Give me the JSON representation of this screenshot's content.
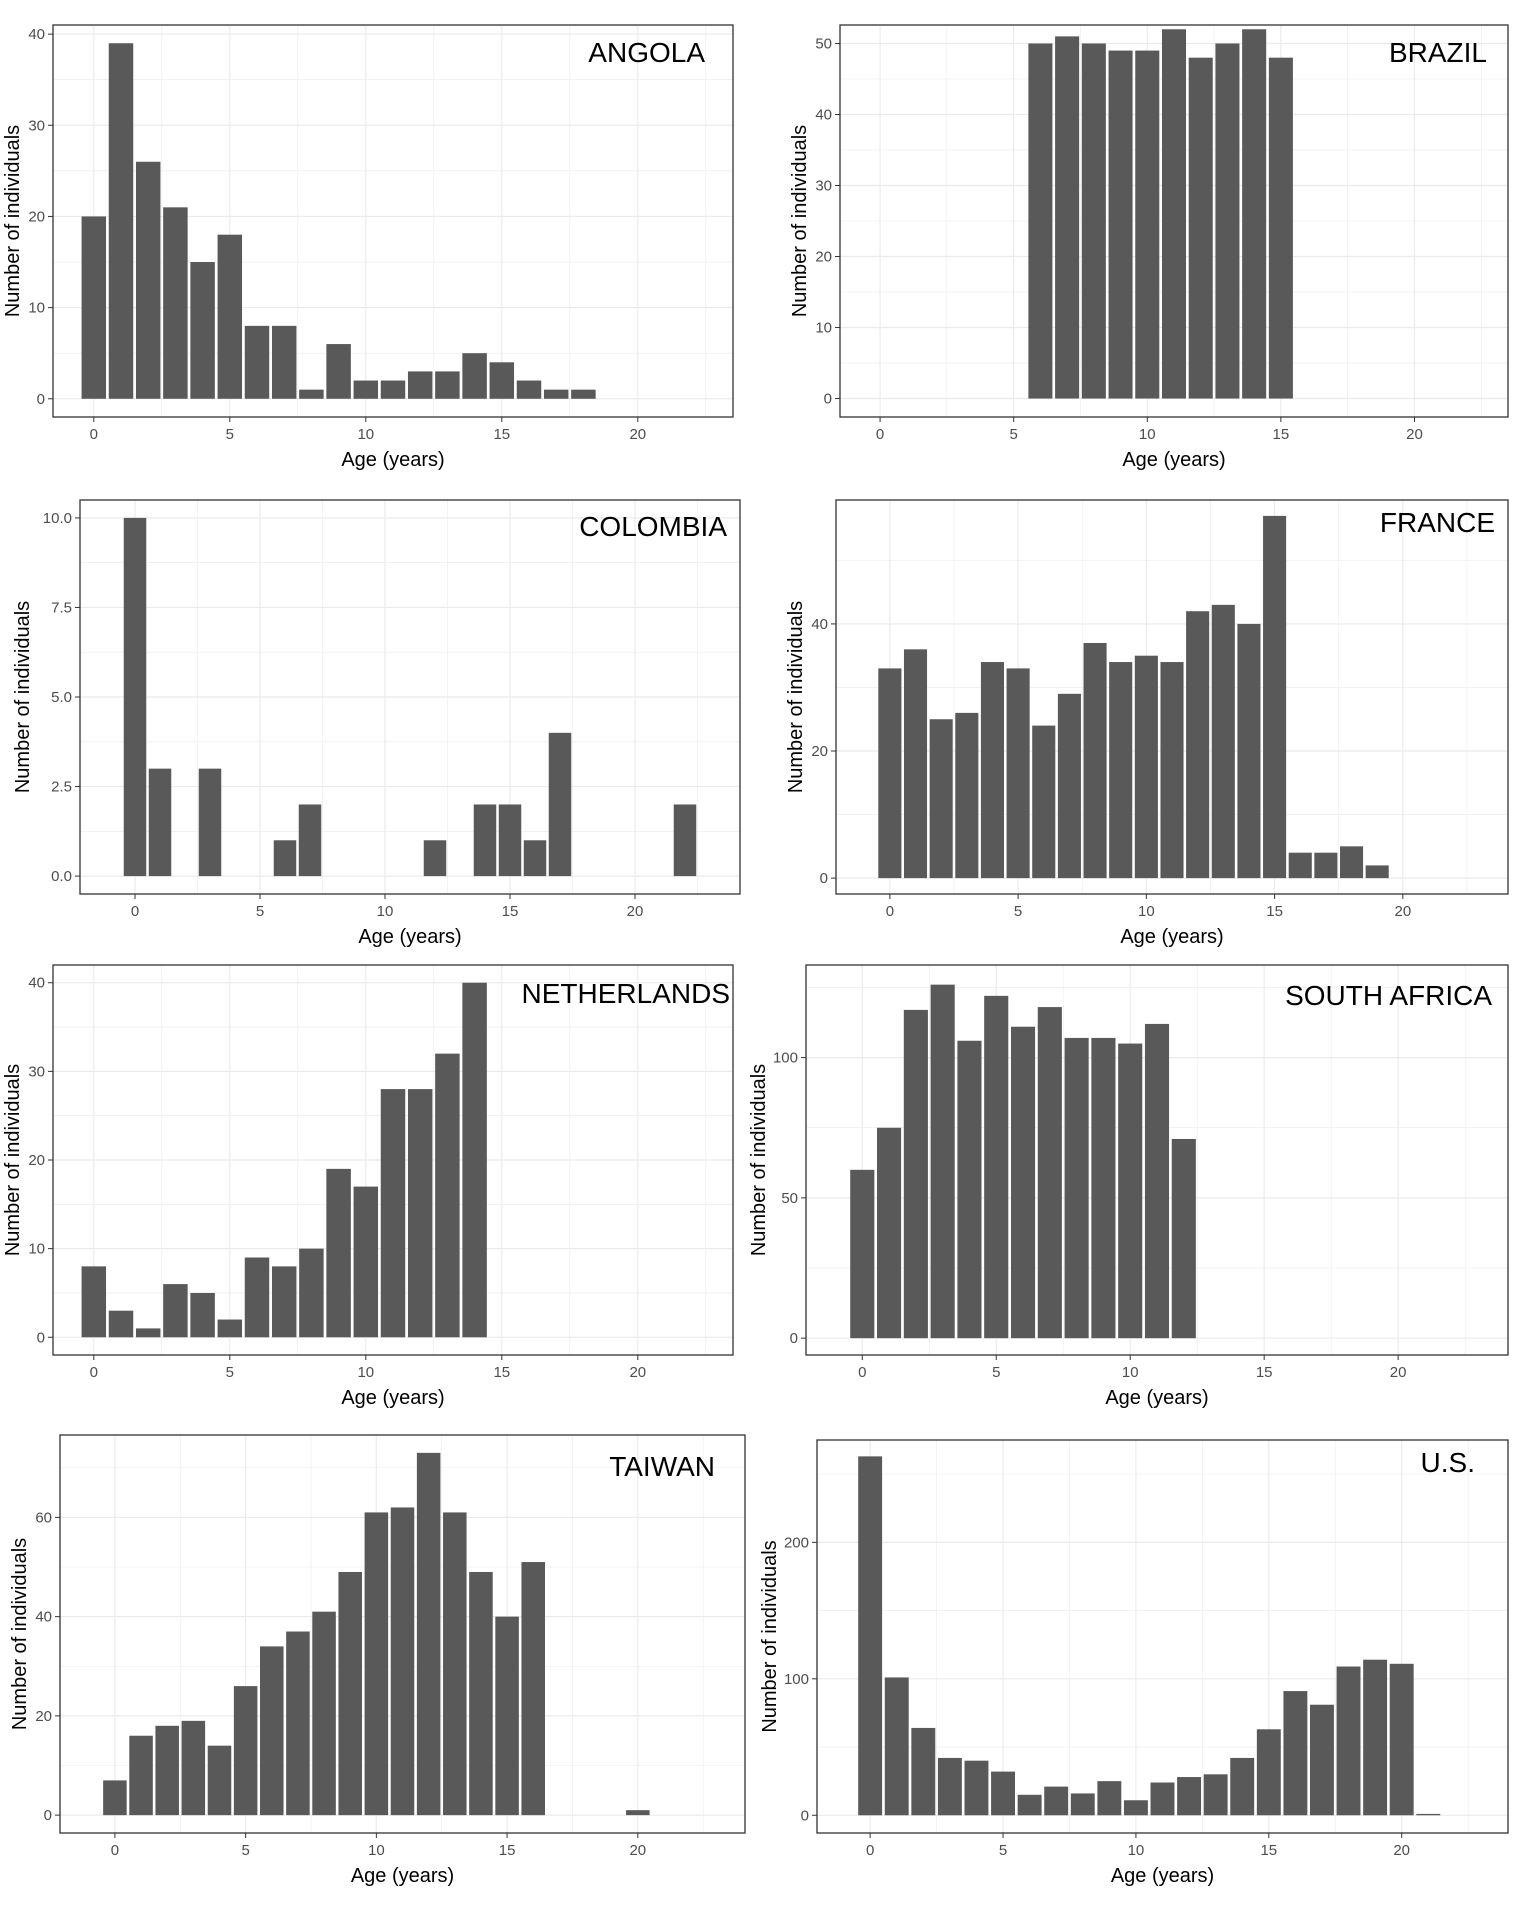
{
  "figure": {
    "bar_color": "#595959",
    "grid_color": "#ebebeb",
    "frame_color": "#333333"
  },
  "chart_data": [
    {
      "id": "angola",
      "title": "ANGOLA",
      "type": "bar",
      "xlabel": "Age (years)",
      "ylabel": "Number of individuals",
      "x": [
        0,
        1,
        2,
        3,
        4,
        5,
        6,
        7,
        8,
        9,
        10,
        11,
        12,
        13,
        14,
        15,
        16,
        17,
        18
      ],
      "values": [
        20,
        39,
        26,
        21,
        15,
        18,
        8,
        8,
        1,
        6,
        2,
        2,
        3,
        3,
        5,
        4,
        2,
        1,
        1
      ],
      "xlim": [
        -1.5,
        23.5
      ],
      "ylim": [
        -2,
        41
      ],
      "xticks": [
        0,
        5,
        10,
        15,
        20
      ],
      "yticks": [
        0,
        10,
        20,
        30,
        40
      ],
      "yticklabels": [
        "0",
        "10",
        "20",
        "30",
        "40"
      ]
    },
    {
      "id": "brazil",
      "title": "BRAZIL",
      "type": "bar",
      "xlabel": "Age (years)",
      "ylabel": "Number of individuals",
      "x": [
        6,
        7,
        8,
        9,
        10,
        11,
        12,
        13,
        14,
        15
      ],
      "values": [
        50,
        51,
        50,
        49,
        49,
        52,
        48,
        50,
        52,
        48
      ],
      "xlim": [
        -1.5,
        23.5
      ],
      "ylim": [
        -2.6,
        52.6
      ],
      "xticks": [
        0,
        5,
        10,
        15,
        20
      ],
      "yticks": [
        0,
        10,
        20,
        30,
        40,
        50
      ],
      "yticklabels": [
        "0",
        "10",
        "20",
        "30",
        "40",
        "50"
      ]
    },
    {
      "id": "colombia",
      "title": "COLOMBIA",
      "type": "bar",
      "xlabel": "Age (years)",
      "ylabel": "Number of individuals",
      "x": [
        0,
        1,
        3,
        6,
        7,
        12,
        14,
        15,
        16,
        17,
        22
      ],
      "values": [
        10,
        3,
        3,
        1,
        2,
        1,
        2,
        2,
        1,
        4,
        2
      ],
      "xlim": [
        -2.2,
        24.2
      ],
      "ylim": [
        -0.5,
        10.5
      ],
      "xticks": [
        0,
        5,
        10,
        15,
        20
      ],
      "yticks": [
        0,
        2.5,
        5,
        7.5,
        10
      ],
      "yticklabels": [
        "0.0",
        "2.5",
        "5.0",
        "7.5",
        "10.0"
      ]
    },
    {
      "id": "france",
      "title": "FRANCE",
      "type": "bar",
      "xlabel": "Age (years)",
      "ylabel": "Number of individuals",
      "x": [
        0,
        1,
        2,
        3,
        4,
        5,
        6,
        7,
        8,
        9,
        10,
        11,
        12,
        13,
        14,
        15,
        16,
        17,
        18,
        19
      ],
      "values": [
        33,
        36,
        25,
        26,
        34,
        33,
        24,
        29,
        37,
        34,
        35,
        34,
        42,
        43,
        40,
        57,
        4,
        4,
        5,
        2
      ],
      "xlim": [
        -2.1,
        24.1
      ],
      "ylim": [
        -2.5,
        59.5
      ],
      "xticks": [
        0,
        5,
        10,
        15,
        20
      ],
      "yticks": [
        0,
        20,
        40
      ],
      "yticklabels": [
        "0",
        "20",
        "40"
      ]
    },
    {
      "id": "netherlands",
      "title": "NETHERLANDS",
      "type": "bar",
      "xlabel": "Age (years)",
      "ylabel": "Number of individuals",
      "x": [
        0,
        1,
        2,
        3,
        4,
        5,
        6,
        7,
        8,
        9,
        10,
        11,
        12,
        13,
        14
      ],
      "values": [
        8,
        3,
        1,
        6,
        5,
        2,
        9,
        8,
        10,
        19,
        17,
        28,
        28,
        32,
        40
      ],
      "xlim": [
        -1.5,
        23.5
      ],
      "ylim": [
        -2,
        42
      ],
      "xticks": [
        0,
        5,
        10,
        15,
        20
      ],
      "yticks": [
        0,
        10,
        20,
        30,
        40
      ],
      "yticklabels": [
        "0",
        "10",
        "20",
        "30",
        "40"
      ]
    },
    {
      "id": "south-africa",
      "title": "SOUTH AFRICA",
      "type": "bar",
      "xlabel": "Age (years)",
      "ylabel": "Number of individuals",
      "x": [
        0,
        1,
        2,
        3,
        4,
        5,
        6,
        7,
        8,
        9,
        10,
        11,
        12
      ],
      "values": [
        60,
        75,
        117,
        126,
        106,
        122,
        111,
        118,
        107,
        107,
        105,
        112,
        71
      ],
      "xlim": [
        -2.1,
        24.1
      ],
      "ylim": [
        -6,
        133
      ],
      "xticks": [
        0,
        5,
        10,
        15,
        20
      ],
      "yticks": [
        0,
        50,
        100
      ],
      "yticklabels": [
        "0",
        "50",
        "100"
      ]
    },
    {
      "id": "taiwan",
      "title": "TAIWAN",
      "type": "bar",
      "xlabel": "Age (years)",
      "ylabel": "Number of individuals",
      "x": [
        0,
        1,
        2,
        3,
        4,
        5,
        6,
        7,
        8,
        9,
        10,
        11,
        12,
        13,
        14,
        15,
        16,
        20
      ],
      "values": [
        7,
        16,
        18,
        19,
        14,
        26,
        34,
        37,
        41,
        49,
        61,
        62,
        73,
        61,
        49,
        40,
        51,
        1
      ],
      "xlim": [
        -2.1,
        24.1
      ],
      "ylim": [
        -3.6,
        76.6
      ],
      "xticks": [
        0,
        5,
        10,
        15,
        20
      ],
      "yticks": [
        0,
        20,
        40,
        60
      ],
      "yticklabels": [
        "0",
        "20",
        "40",
        "60"
      ]
    },
    {
      "id": "us",
      "title": "U.S.",
      "type": "bar",
      "xlabel": "Age (years)",
      "ylabel": "Number of individuals",
      "x": [
        0,
        1,
        2,
        3,
        4,
        5,
        6,
        7,
        8,
        9,
        10,
        11,
        12,
        13,
        14,
        15,
        16,
        17,
        18,
        19,
        20,
        21
      ],
      "values": [
        263,
        101,
        64,
        42,
        40,
        32,
        15,
        21,
        16,
        25,
        11,
        24,
        28,
        30,
        42,
        63,
        91,
        81,
        109,
        114,
        111,
        1
      ],
      "xlim": [
        -2,
        24
      ],
      "ylim": [
        -13,
        275
      ],
      "xticks": [
        0,
        5,
        10,
        15,
        20
      ],
      "yticks": [
        0,
        100,
        200
      ],
      "yticklabels": [
        "0",
        "100",
        "200"
      ]
    }
  ]
}
